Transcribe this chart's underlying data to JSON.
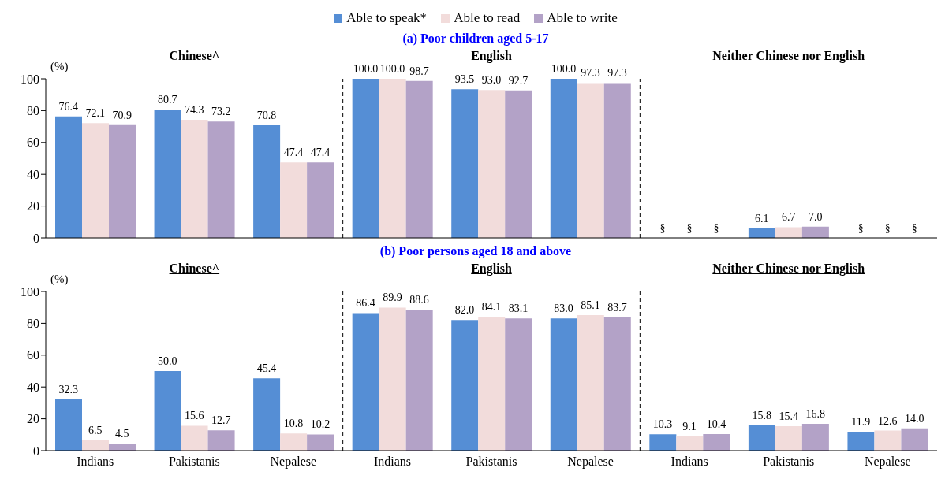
{
  "chart_data": [
    {
      "type": "bar",
      "title": "(a) Poor children aged 5-17",
      "ylabel": "(%)",
      "annotations": [
        "Chinese^",
        "English",
        "Neither Chinese nor English"
      ],
      "categories": [
        null,
        null,
        null,
        null,
        null,
        null,
        null,
        null,
        null
      ],
      "tick_labels": "y",
      "legend": "top",
      "ylim": [
        0,
        100
      ],
      "yticks": [
        0,
        20,
        40,
        60,
        80,
        100
      ],
      "series": [
        {
          "name": "Able to speak*",
          "color": "#558ed5",
          "values": [
            76.4,
            80.7,
            70.8,
            100.0,
            93.5,
            100.0,
            null,
            6.1,
            null
          ],
          "value_labels": [
            "76.4",
            "80.7",
            "70.8",
            "100.0",
            "93.5",
            "100.0",
            "§",
            "6.1",
            "§"
          ]
        },
        {
          "name": "Able to read",
          "color": "#f2dcdb",
          "values": [
            72.1,
            74.3,
            47.4,
            100.0,
            93.0,
            97.3,
            null,
            6.7,
            null
          ],
          "value_labels": [
            "72.1",
            "74.3",
            "47.4",
            "100.0",
            "93.0",
            "97.3",
            "§",
            "6.7",
            "§"
          ]
        },
        {
          "name": "Able to write",
          "color": "#b3a2c7",
          "values": [
            70.9,
            73.2,
            47.4,
            98.7,
            92.7,
            97.3,
            null,
            7.0,
            null
          ],
          "value_labels": [
            "70.9",
            "73.2",
            "47.4",
            "98.7",
            "92.7",
            "97.3",
            "§",
            "7.0",
            "§"
          ]
        }
      ]
    },
    {
      "type": "bar",
      "title": "(b) Poor persons aged 18 and above",
      "ylabel": "(%)",
      "annotations": [
        "Chinese^",
        "English",
        "Neither Chinese nor English"
      ],
      "categories": [
        "Indians",
        "Pakistanis",
        "Nepalese",
        "Indians",
        "Pakistanis",
        "Nepalese",
        "Indians",
        "Pakistanis",
        "Nepalese"
      ],
      "ylim": [
        0,
        100
      ],
      "yticks": [
        0,
        20,
        40,
        60,
        80,
        100
      ],
      "series": [
        {
          "color": "#558ed5",
          "values": [
            32.3,
            50.0,
            45.4,
            86.4,
            82.0,
            83.0,
            10.3,
            15.8,
            11.9
          ],
          "value_labels": [
            "32.3",
            "50.0",
            "45.4",
            "86.4",
            "82.0",
            "83.0",
            "10.3",
            "15.8",
            "11.9"
          ]
        },
        {
          "color": "#f2dcdb",
          "values": [
            6.5,
            15.6,
            10.8,
            89.9,
            84.1,
            85.1,
            9.1,
            15.4,
            12.6
          ],
          "value_labels": [
            "6.5",
            "15.6",
            "10.8",
            "89.9",
            "84.1",
            "85.1",
            "9.1",
            "15.4",
            "12.6"
          ]
        },
        {
          "color": "#b3a2c7",
          "values": [
            4.5,
            12.7,
            10.2,
            88.6,
            83.1,
            83.7,
            10.4,
            16.8,
            14.0
          ],
          "value_labels": [
            "4.5",
            "12.7",
            "10.2",
            "88.6",
            "83.1",
            "83.7",
            "10.4",
            "16.8",
            "14.0"
          ]
        }
      ]
    }
  ]
}
